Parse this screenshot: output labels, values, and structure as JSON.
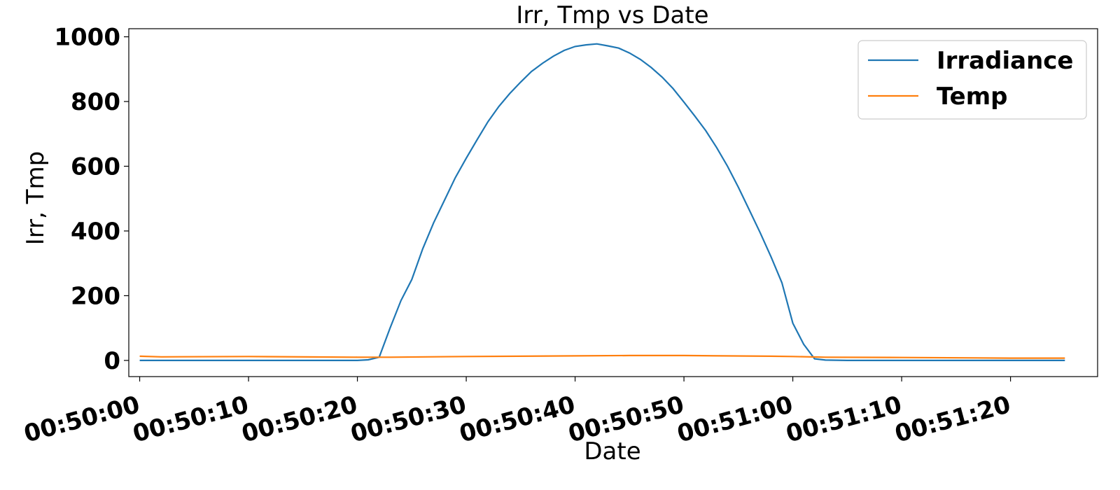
{
  "chart_data": {
    "type": "line",
    "title": "Irr, Tmp vs Date",
    "xlabel": "Date",
    "ylabel": "Irr, Tmp",
    "xlim": [
      "00:49:59",
      "00:51:28"
    ],
    "ylim": [
      -50,
      1025
    ],
    "x_ticks": [
      "00:50:00",
      "00:50:10",
      "00:50:20",
      "00:50:30",
      "00:50:40",
      "00:50:50",
      "00:51:00",
      "00:51:10",
      "00:51:20"
    ],
    "y_ticks": [
      0,
      200,
      400,
      600,
      800,
      1000
    ],
    "grid": false,
    "legend_position": "top-right",
    "series": [
      {
        "name": "Irradiance",
        "color": "#1f77b4",
        "points": [
          [
            "00:50:00",
            0
          ],
          [
            "00:50:05",
            0
          ],
          [
            "00:50:10",
            0
          ],
          [
            "00:50:15",
            0
          ],
          [
            "00:50:20",
            0
          ],
          [
            "00:50:21",
            2
          ],
          [
            "00:50:22",
            10
          ],
          [
            "00:50:23",
            100
          ],
          [
            "00:50:24",
            185
          ],
          [
            "00:50:25",
            250
          ],
          [
            "00:50:26",
            345
          ],
          [
            "00:50:27",
            425
          ],
          [
            "00:50:28",
            495
          ],
          [
            "00:50:29",
            565
          ],
          [
            "00:50:30",
            625
          ],
          [
            "00:50:31",
            682
          ],
          [
            "00:50:32",
            738
          ],
          [
            "00:50:33",
            785
          ],
          [
            "00:50:34",
            825
          ],
          [
            "00:50:35",
            860
          ],
          [
            "00:50:36",
            893
          ],
          [
            "00:50:37",
            918
          ],
          [
            "00:50:38",
            940
          ],
          [
            "00:50:39",
            958
          ],
          [
            "00:50:40",
            970
          ],
          [
            "00:50:41",
            975
          ],
          [
            "00:50:42",
            978
          ],
          [
            "00:50:43",
            972
          ],
          [
            "00:50:44",
            965
          ],
          [
            "00:50:45",
            950
          ],
          [
            "00:50:46",
            930
          ],
          [
            "00:50:47",
            905
          ],
          [
            "00:50:48",
            875
          ],
          [
            "00:50:49",
            840
          ],
          [
            "00:50:50",
            798
          ],
          [
            "00:50:51",
            755
          ],
          [
            "00:50:52",
            710
          ],
          [
            "00:50:53",
            658
          ],
          [
            "00:50:54",
            600
          ],
          [
            "00:50:55",
            535
          ],
          [
            "00:50:56",
            465
          ],
          [
            "00:50:57",
            395
          ],
          [
            "00:50:58",
            320
          ],
          [
            "00:50:59",
            240
          ],
          [
            "00:51:00",
            115
          ],
          [
            "00:51:01",
            50
          ],
          [
            "00:51:02",
            5
          ],
          [
            "00:51:03",
            1
          ],
          [
            "00:51:05",
            0
          ],
          [
            "00:51:10",
            0
          ],
          [
            "00:51:15",
            0
          ],
          [
            "00:51:20",
            0
          ],
          [
            "00:51:25",
            0
          ]
        ]
      },
      {
        "name": "Temp",
        "color": "#ff7f0e",
        "points": [
          [
            "00:50:00",
            13
          ],
          [
            "00:50:02",
            11
          ],
          [
            "00:50:10",
            12
          ],
          [
            "00:50:20",
            10
          ],
          [
            "00:50:23",
            10
          ],
          [
            "00:50:30",
            12
          ],
          [
            "00:50:40",
            14
          ],
          [
            "00:50:45",
            15
          ],
          [
            "00:50:50",
            15
          ],
          [
            "00:50:58",
            13
          ],
          [
            "00:51:00",
            12
          ],
          [
            "00:51:03",
            10
          ],
          [
            "00:51:10",
            9
          ],
          [
            "00:51:20",
            7
          ],
          [
            "00:51:25",
            7
          ]
        ]
      }
    ]
  }
}
